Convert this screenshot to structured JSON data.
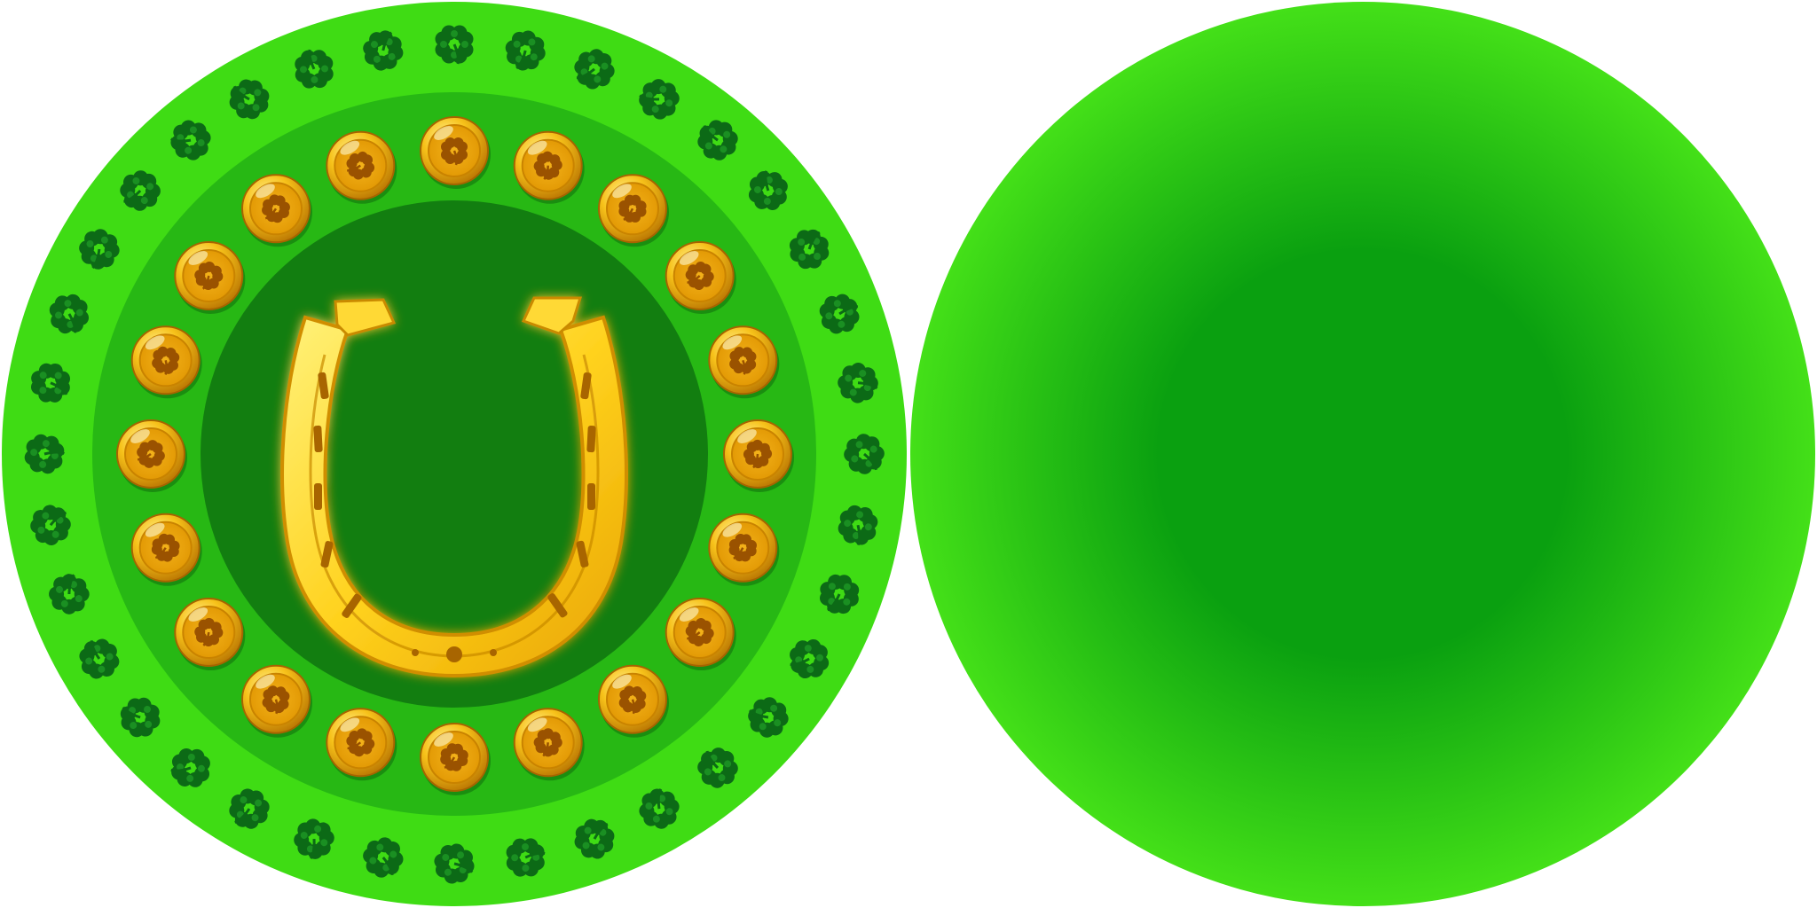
{
  "sprite_sheet": {
    "frames": [
      {
        "name": "lucky-horseshoe-coin-front",
        "icon": "horseshoe-icon",
        "inner_ring_icon": "gold-clover-coin-icon",
        "inner_ring_count": 20,
        "outer_ring_icon": "clover-icon",
        "outer_ring_count": 36
      },
      {
        "name": "plain-green-coin-back",
        "icon": "none"
      }
    ]
  },
  "colors": {
    "background": "#ffffff",
    "outer_green": "#3fdc14",
    "band_green": "#27b814",
    "center_green": "#127e10",
    "back_light": "#44e018",
    "back_dark": "#0aa010",
    "clover_dark": "#0c6a16",
    "clover_mid": "#1a8f22",
    "gold_light": "#ffe14a",
    "gold_mid": "#f5b400",
    "gold_dark": "#a66400"
  }
}
